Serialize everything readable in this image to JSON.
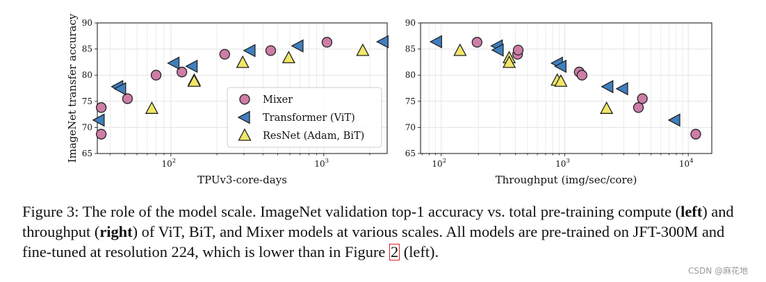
{
  "colors": {
    "mixer": "#cd7da6",
    "vit": "#3f7fbf",
    "resnet": "#f0e668",
    "grid": "#e3e3e3",
    "caption_ref_box": "#e02020"
  },
  "chart_data": [
    {
      "type": "scatter",
      "xscale": "log",
      "xlim": [
        33,
        2600
      ],
      "ylim": [
        65,
        90
      ],
      "xlabel": "TPUv3-core-days",
      "ylabel": "ImageNet transfer accuracy",
      "yticks": [
        "65",
        "70",
        "75",
        "80",
        "85",
        "90"
      ],
      "xticks": [
        {
          "value": 100,
          "base": "10",
          "exp": "2"
        },
        {
          "value": 1000,
          "base": "10",
          "exp": "3"
        }
      ],
      "grid": true,
      "legend_position": "lower-right",
      "series": [
        {
          "name": "Mixer",
          "marker": "circle",
          "color_key": "mixer",
          "points": [
            [
              35,
              68.7
            ],
            [
              35,
              73.8
            ],
            [
              52,
              75.5
            ],
            [
              80,
              80.0
            ],
            [
              118,
              80.6
            ],
            [
              225,
              84.0
            ],
            [
              450,
              84.7
            ],
            [
              1050,
              86.3
            ]
          ]
        },
        {
          "name": "Transformer (ViT)",
          "marker": "triangle-left",
          "color_key": "vit",
          "points": [
            [
              34,
              71.4
            ],
            [
              45,
              77.8
            ],
            [
              47,
              77.4
            ],
            [
              105,
              82.3
            ],
            [
              138,
              81.7
            ],
            [
              330,
              84.7
            ],
            [
              680,
              85.6
            ],
            [
              2450,
              86.4
            ]
          ]
        },
        {
          "name": "ResNet (Adam, BiT)",
          "marker": "triangle-up",
          "color_key": "resnet",
          "points": [
            [
              75,
              73.6
            ],
            [
              142,
              79.0
            ],
            [
              142,
              78.8
            ],
            [
              295,
              82.4
            ],
            [
              590,
              83.3
            ],
            [
              1800,
              84.7
            ]
          ]
        }
      ]
    },
    {
      "type": "scatter",
      "xscale": "log",
      "xlim": [
        68,
        15500
      ],
      "ylim": [
        65,
        90
      ],
      "xlabel": "Throughput (img/sec/core)",
      "ylabel": "",
      "yticks": [
        "65",
        "70",
        "75",
        "80",
        "85",
        "90"
      ],
      "xticks": [
        {
          "value": 100,
          "base": "10",
          "exp": "2"
        },
        {
          "value": 1000,
          "base": "10",
          "exp": "3"
        },
        {
          "value": 10000,
          "base": "10",
          "exp": "4"
        }
      ],
      "grid": true,
      "series": [
        {
          "name": "Mixer",
          "marker": "circle",
          "color_key": "mixer",
          "points": [
            [
              195,
              86.3
            ],
            [
              415,
              84.0
            ],
            [
              420,
              84.8
            ],
            [
              1310,
              80.6
            ],
            [
              1380,
              80.0
            ],
            [
              3950,
              73.8
            ],
            [
              4250,
              75.5
            ],
            [
              11500,
              68.7
            ]
          ]
        },
        {
          "name": "Transformer (ViT)",
          "marker": "triangle-left",
          "color_key": "vit",
          "points": [
            [
              92,
              86.4
            ],
            [
              285,
              85.6
            ],
            [
              290,
              84.8
            ],
            [
              875,
              82.3
            ],
            [
              935,
              81.7
            ],
            [
              2240,
              77.8
            ],
            [
              2950,
              77.4
            ],
            [
              7800,
              71.4
            ]
          ]
        },
        {
          "name": "ResNet (Adam, BiT)",
          "marker": "triangle-up",
          "color_key": "resnet",
          "points": [
            [
              142,
              84.7
            ],
            [
              355,
              83.3
            ],
            [
              355,
              82.4
            ],
            [
              870,
              79.0
            ],
            [
              930,
              78.8
            ],
            [
              2180,
              73.6
            ]
          ]
        }
      ]
    }
  ],
  "caption": {
    "part1": "Figure 3: The role of the model scale. ImageNet validation top-1 accuracy vs. total pre-training compute (",
    "left_word": "left",
    "part2": ") and throughput (",
    "right_word": "right",
    "part3": ") of ViT, BiT, and Mixer models at various scales. All models are pre-trained on JFT-300M and fine-tuned at resolution 224, which is lower than in Figure ",
    "ref": "2",
    "part4": " (left)."
  },
  "watermark": "CSDN @麻花地"
}
